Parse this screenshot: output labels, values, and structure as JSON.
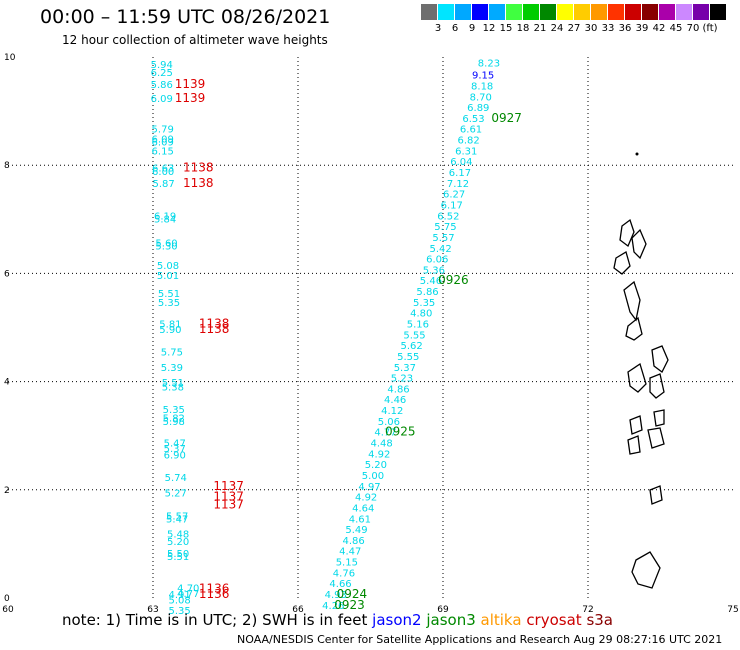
{
  "header": {
    "title": "00:00 – 11:59 UTC 08/26/2021",
    "subtitle": "12 hour collection of altimeter wave heights"
  },
  "color_scale": {
    "colors": [
      "#6e6e6e",
      "#00e5ff",
      "#00a8ff",
      "#0000ff",
      "#00aaff",
      "#40ff40",
      "#00cc00",
      "#008800",
      "#ffff00",
      "#ffcc00",
      "#ff9900",
      "#ff3300",
      "#cc0000",
      "#880000",
      "#aa00aa",
      "#cc88ff",
      "#7700aa",
      "#000000"
    ],
    "labels": [
      "3",
      "6",
      "9",
      "12",
      "15",
      "18",
      "21",
      "24",
      "27",
      "30",
      "33",
      "36",
      "39",
      "42",
      "45",
      "70",
      "(ft)"
    ]
  },
  "axes": {
    "x_ticks": [
      "60",
      "63",
      "66",
      "69",
      "72",
      "75"
    ],
    "y_ticks": [
      "0",
      "2",
      "4",
      "6",
      "8",
      "10"
    ],
    "xlim": [
      60,
      75
    ],
    "ylim": [
      0,
      10
    ]
  },
  "note": {
    "prefix": "note: 1) Time is in UTC; 2) SWH is in feet",
    "satellites": [
      {
        "name": "jason2",
        "color": "#0000ff"
      },
      {
        "name": "jason3",
        "color": "#008800"
      },
      {
        "name": "altika",
        "color": "#ff9900"
      },
      {
        "name": "cryosat",
        "color": "#cc0000"
      },
      {
        "name": "s3a",
        "color": "#880000"
      }
    ]
  },
  "credit": "NOAA/NESDIS Center for Satellite Applications and Research    Aug 29 08:27:16 UTC 2021",
  "tracks": {
    "left": {
      "points": [
        {
          "x": 62.95,
          "y": 9.8,
          "v": "5.94"
        },
        {
          "x": 62.95,
          "y": 9.65,
          "v": "6.25"
        },
        {
          "x": 62.95,
          "y": 9.43,
          "v": "5.86"
        },
        {
          "x": 62.95,
          "y": 9.17,
          "v": "6.09"
        },
        {
          "x": 62.97,
          "y": 8.6,
          "v": "5.79"
        },
        {
          "x": 62.97,
          "y": 8.42,
          "v": "6.09"
        },
        {
          "x": 62.97,
          "y": 8.36,
          "v": "6.09"
        },
        {
          "x": 62.97,
          "y": 8.2,
          "v": "6.15"
        },
        {
          "x": 62.98,
          "y": 7.88,
          "v": "6.63"
        },
        {
          "x": 62.98,
          "y": 7.82,
          "v": "6.00"
        },
        {
          "x": 62.99,
          "y": 7.6,
          "v": "5.87"
        },
        {
          "x": 63.02,
          "y": 7.0,
          "v": "6.19"
        },
        {
          "x": 63.02,
          "y": 6.94,
          "v": "5.84"
        },
        {
          "x": 63.05,
          "y": 6.5,
          "v": "5.60"
        },
        {
          "x": 63.05,
          "y": 6.44,
          "v": "5.30"
        },
        {
          "x": 63.08,
          "y": 6.08,
          "v": "5.08"
        },
        {
          "x": 63.08,
          "y": 5.9,
          "v": "5.01"
        },
        {
          "x": 63.1,
          "y": 5.56,
          "v": "5.51"
        },
        {
          "x": 63.1,
          "y": 5.4,
          "v": "5.35"
        },
        {
          "x": 63.13,
          "y": 5.0,
          "v": "5.81"
        },
        {
          "x": 63.13,
          "y": 4.9,
          "v": "5.90"
        },
        {
          "x": 63.16,
          "y": 4.48,
          "v": "5.75"
        },
        {
          "x": 63.16,
          "y": 4.2,
          "v": "5.39"
        },
        {
          "x": 63.18,
          "y": 3.92,
          "v": "5.51"
        },
        {
          "x": 63.18,
          "y": 3.84,
          "v": "5.38"
        },
        {
          "x": 63.2,
          "y": 3.42,
          "v": "5.35"
        },
        {
          "x": 63.2,
          "y": 3.26,
          "v": "5.82"
        },
        {
          "x": 63.2,
          "y": 3.2,
          "v": "5.98"
        },
        {
          "x": 63.22,
          "y": 2.8,
          "v": "5.47"
        },
        {
          "x": 63.22,
          "y": 2.7,
          "v": "5.37"
        },
        {
          "x": 63.22,
          "y": 2.58,
          "v": "6.90"
        },
        {
          "x": 63.24,
          "y": 2.16,
          "v": "5.74"
        },
        {
          "x": 63.24,
          "y": 1.88,
          "v": "5.27"
        },
        {
          "x": 63.27,
          "y": 1.45,
          "v": "5.57"
        },
        {
          "x": 63.27,
          "y": 1.4,
          "v": "5.47"
        },
        {
          "x": 63.29,
          "y": 1.12,
          "v": "5.48"
        },
        {
          "x": 63.29,
          "y": 0.98,
          "v": "5.20"
        },
        {
          "x": 63.29,
          "y": 0.76,
          "v": "5.50"
        },
        {
          "x": 63.29,
          "y": 0.7,
          "v": "5.51"
        },
        {
          "x": 63.32,
          "y": 0.0,
          "v": "4.91"
        },
        {
          "x": 63.32,
          "y": -0.1,
          "v": "5.08"
        },
        {
          "x": 63.32,
          "y": -0.3,
          "v": "5.35"
        }
      ],
      "times": [
        {
          "x": 63.45,
          "y": 9.43,
          "t": "1139"
        },
        {
          "x": 63.45,
          "y": 9.17,
          "t": "1139"
        },
        {
          "x": 63.62,
          "y": 7.88,
          "t": "1138"
        },
        {
          "x": 63.62,
          "y": 7.6,
          "t": "1138"
        },
        {
          "x": 63.95,
          "y": 5.0,
          "t": "1138"
        },
        {
          "x": 63.95,
          "y": 4.9,
          "t": "1138"
        },
        {
          "x": 64.25,
          "y": 2.0,
          "t": "1137"
        },
        {
          "x": 64.25,
          "y": 1.8,
          "t": "1137"
        },
        {
          "x": 64.25,
          "y": 1.65,
          "t": "1137"
        },
        {
          "x": 63.95,
          "y": 0.1,
          "t": "1136"
        },
        {
          "x": 63.95,
          "y": 0.0,
          "t": "1136"
        }
      ]
    },
    "lower_left": {
      "points": [
        {
          "x": 63.5,
          "y": 0.12,
          "v": "4.70"
        },
        {
          "x": 63.5,
          "y": 0.02,
          "v": "4.77"
        }
      ]
    },
    "right": {
      "points": [
        {
          "x": 69.72,
          "y": 9.82,
          "v": "8.23"
        },
        {
          "x": 69.6,
          "y": 9.6,
          "v": "9.15",
          "color": "#0000ff"
        },
        {
          "x": 69.58,
          "y": 9.4,
          "v": "8.18"
        },
        {
          "x": 69.55,
          "y": 9.2,
          "v": "8.70"
        },
        {
          "x": 69.5,
          "y": 9.0,
          "v": "6.89"
        },
        {
          "x": 69.4,
          "y": 8.8,
          "v": "6.53"
        },
        {
          "x": 69.35,
          "y": 8.6,
          "v": "6.61"
        },
        {
          "x": 69.3,
          "y": 8.4,
          "v": "6.82"
        },
        {
          "x": 69.25,
          "y": 8.2,
          "v": "6.31"
        },
        {
          "x": 69.15,
          "y": 8.0,
          "v": "6.04"
        },
        {
          "x": 69.12,
          "y": 7.8,
          "v": "6.17"
        },
        {
          "x": 69.08,
          "y": 7.6,
          "v": "7.12"
        },
        {
          "x": 69.0,
          "y": 7.4,
          "v": "6.27"
        },
        {
          "x": 68.95,
          "y": 7.2,
          "v": "6.17"
        },
        {
          "x": 68.88,
          "y": 7.0,
          "v": "6.52"
        },
        {
          "x": 68.82,
          "y": 6.8,
          "v": "5.75"
        },
        {
          "x": 68.78,
          "y": 6.6,
          "v": "5.57"
        },
        {
          "x": 68.72,
          "y": 6.4,
          "v": "5.42"
        },
        {
          "x": 68.65,
          "y": 6.2,
          "v": "6.06"
        },
        {
          "x": 68.58,
          "y": 6.0,
          "v": "5.36"
        },
        {
          "x": 68.52,
          "y": 5.8,
          "v": "5.46"
        },
        {
          "x": 68.45,
          "y": 5.6,
          "v": "5.86"
        },
        {
          "x": 68.38,
          "y": 5.4,
          "v": "5.35"
        },
        {
          "x": 68.32,
          "y": 5.2,
          "v": "4.80"
        },
        {
          "x": 68.25,
          "y": 5.0,
          "v": "5.16"
        },
        {
          "x": 68.18,
          "y": 4.8,
          "v": "5.55"
        },
        {
          "x": 68.12,
          "y": 4.6,
          "v": "5.62"
        },
        {
          "x": 68.05,
          "y": 4.4,
          "v": "5.55"
        },
        {
          "x": 67.98,
          "y": 4.2,
          "v": "5.37"
        },
        {
          "x": 67.92,
          "y": 4.0,
          "v": "5.23"
        },
        {
          "x": 67.85,
          "y": 3.8,
          "v": "4.86"
        },
        {
          "x": 67.78,
          "y": 3.6,
          "v": "4.46"
        },
        {
          "x": 67.72,
          "y": 3.4,
          "v": "4.12"
        },
        {
          "x": 67.65,
          "y": 3.2,
          "v": "5.06"
        },
        {
          "x": 67.58,
          "y": 3.0,
          "v": "4.77"
        },
        {
          "x": 67.5,
          "y": 2.8,
          "v": "4.48"
        },
        {
          "x": 67.45,
          "y": 2.6,
          "v": "4.92"
        },
        {
          "x": 67.38,
          "y": 2.4,
          "v": "5.20"
        },
        {
          "x": 67.32,
          "y": 2.2,
          "v": "5.00"
        },
        {
          "x": 67.25,
          "y": 2.0,
          "v": "4.97"
        },
        {
          "x": 67.18,
          "y": 1.8,
          "v": "4.92"
        },
        {
          "x": 67.12,
          "y": 1.6,
          "v": "4.64"
        },
        {
          "x": 67.05,
          "y": 1.4,
          "v": "4.61"
        },
        {
          "x": 66.98,
          "y": 1.2,
          "v": "5.49"
        },
        {
          "x": 66.92,
          "y": 1.0,
          "v": "4.86"
        },
        {
          "x": 66.85,
          "y": 0.8,
          "v": "4.47"
        },
        {
          "x": 66.78,
          "y": 0.6,
          "v": "5.15"
        },
        {
          "x": 66.72,
          "y": 0.4,
          "v": "4.76"
        },
        {
          "x": 66.65,
          "y": 0.2,
          "v": "4.66"
        },
        {
          "x": 66.55,
          "y": 0.0,
          "v": "4.93"
        },
        {
          "x": 66.5,
          "y": -0.2,
          "v": "4.26"
        }
      ],
      "times": [
        {
          "x": 70.0,
          "y": 8.8,
          "t": "0927"
        },
        {
          "x": 68.9,
          "y": 5.8,
          "t": "0926"
        },
        {
          "x": 67.8,
          "y": 3.0,
          "t": "0925"
        },
        {
          "x": 66.8,
          "y": 0.0,
          "t": "0924"
        },
        {
          "x": 66.75,
          "y": -0.2,
          "t": "0923"
        }
      ]
    }
  }
}
